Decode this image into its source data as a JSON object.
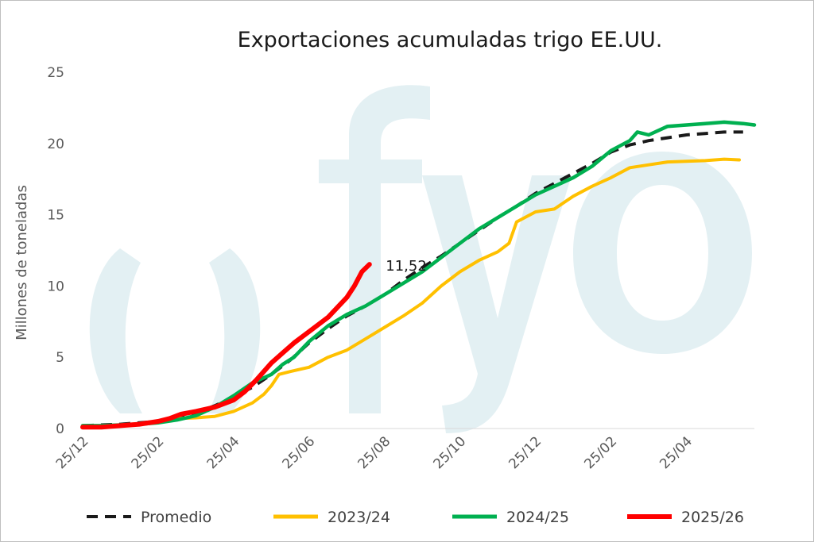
{
  "chart_data": {
    "type": "line",
    "title": "Exportaciones acumuladas trigo EE.UU.",
    "ylabel": "Millones de toneladas",
    "xlabel": "",
    "ylim": [
      0,
      25
    ],
    "yticks": [
      "0",
      "5",
      "10",
      "15",
      "20",
      "25"
    ],
    "xlim": [
      0,
      17.8
    ],
    "xticks": [
      {
        "pos": 0,
        "label": "25/12"
      },
      {
        "pos": 2,
        "label": "25/02"
      },
      {
        "pos": 4,
        "label": "25/04"
      },
      {
        "pos": 6,
        "label": "25/06"
      },
      {
        "pos": 8,
        "label": "25/08"
      },
      {
        "pos": 10,
        "label": "25/10"
      },
      {
        "pos": 12,
        "label": "25/12"
      },
      {
        "pos": 14,
        "label": "25/02"
      },
      {
        "pos": 16,
        "label": "25/04"
      }
    ],
    "watermark": "fyo",
    "annotation": {
      "text": "11,52",
      "x": 7.4,
      "y": 11.52
    },
    "grid": false,
    "legend_position": "bottom",
    "series": [
      {
        "name": "Promedio",
        "color": "#1a1a1a",
        "dashed": true,
        "points": [
          [
            0,
            0.2
          ],
          [
            0.5,
            0.25
          ],
          [
            1,
            0.3
          ],
          [
            1.5,
            0.4
          ],
          [
            2,
            0.5
          ],
          [
            2.5,
            0.7
          ],
          [
            3,
            1.1
          ],
          [
            3.5,
            1.6
          ],
          [
            4,
            2.2
          ],
          [
            4.5,
            2.9
          ],
          [
            5,
            3.8
          ],
          [
            5.5,
            4.8
          ],
          [
            6,
            6.0
          ],
          [
            6.5,
            7.0
          ],
          [
            7,
            7.9
          ],
          [
            7.5,
            8.6
          ],
          [
            8,
            9.4
          ],
          [
            8.5,
            10.4
          ],
          [
            9,
            11.3
          ],
          [
            9.5,
            12.1
          ],
          [
            10,
            13.0
          ],
          [
            10.5,
            13.9
          ],
          [
            11,
            14.8
          ],
          [
            11.5,
            15.6
          ],
          [
            12,
            16.5
          ],
          [
            12.5,
            17.2
          ],
          [
            13,
            17.9
          ],
          [
            13.5,
            18.6
          ],
          [
            14,
            19.4
          ],
          [
            14.5,
            19.9
          ],
          [
            15,
            20.2
          ],
          [
            15.5,
            20.4
          ],
          [
            16,
            20.6
          ],
          [
            16.5,
            20.7
          ],
          [
            17,
            20.8
          ],
          [
            17.5,
            20.8
          ]
        ]
      },
      {
        "name": "2023/24",
        "color": "#ffc000",
        "dashed": false,
        "points": [
          [
            0,
            0.1
          ],
          [
            0.5,
            0.15
          ],
          [
            1,
            0.25
          ],
          [
            1.5,
            0.35
          ],
          [
            2,
            0.5
          ],
          [
            2.5,
            0.7
          ],
          [
            3,
            0.75
          ],
          [
            3.5,
            0.85
          ],
          [
            4,
            1.2
          ],
          [
            4.5,
            1.8
          ],
          [
            4.8,
            2.4
          ],
          [
            5,
            3.0
          ],
          [
            5.2,
            3.8
          ],
          [
            5.5,
            4.0
          ],
          [
            6,
            4.3
          ],
          [
            6.5,
            5.0
          ],
          [
            7,
            5.5
          ],
          [
            7.5,
            6.3
          ],
          [
            8,
            7.1
          ],
          [
            8.5,
            7.9
          ],
          [
            9,
            8.8
          ],
          [
            9.5,
            10.0
          ],
          [
            10,
            11.0
          ],
          [
            10.5,
            11.8
          ],
          [
            11,
            12.4
          ],
          [
            11.3,
            13.0
          ],
          [
            11.5,
            14.5
          ],
          [
            12,
            15.2
          ],
          [
            12.5,
            15.4
          ],
          [
            13,
            16.3
          ],
          [
            13.5,
            17.0
          ],
          [
            14,
            17.6
          ],
          [
            14.5,
            18.3
          ],
          [
            15,
            18.5
          ],
          [
            15.5,
            18.7
          ],
          [
            16,
            18.75
          ],
          [
            16.5,
            18.8
          ],
          [
            17,
            18.9
          ],
          [
            17.4,
            18.85
          ]
        ]
      },
      {
        "name": "2024/25",
        "color": "#00b050",
        "dashed": false,
        "points": [
          [
            0,
            0.2
          ],
          [
            0.5,
            0.2
          ],
          [
            1,
            0.25
          ],
          [
            1.5,
            0.3
          ],
          [
            2,
            0.4
          ],
          [
            2.5,
            0.6
          ],
          [
            3,
            0.9
          ],
          [
            3.5,
            1.5
          ],
          [
            4,
            2.3
          ],
          [
            4.5,
            3.2
          ],
          [
            5,
            3.8
          ],
          [
            5.3,
            4.5
          ],
          [
            5.6,
            5.0
          ],
          [
            6,
            6.1
          ],
          [
            6.5,
            7.2
          ],
          [
            7,
            8.0
          ],
          [
            7.5,
            8.6
          ],
          [
            8,
            9.4
          ],
          [
            8.5,
            10.2
          ],
          [
            9,
            11.0
          ],
          [
            9.5,
            12.0
          ],
          [
            10,
            13.0
          ],
          [
            10.5,
            14.0
          ],
          [
            11,
            14.8
          ],
          [
            11.5,
            15.6
          ],
          [
            12,
            16.4
          ],
          [
            12.5,
            17.0
          ],
          [
            13,
            17.6
          ],
          [
            13.5,
            18.4
          ],
          [
            14,
            19.5
          ],
          [
            14.5,
            20.2
          ],
          [
            14.7,
            20.8
          ],
          [
            15,
            20.6
          ],
          [
            15.5,
            21.2
          ],
          [
            16,
            21.3
          ],
          [
            16.5,
            21.4
          ],
          [
            17,
            21.5
          ],
          [
            17.5,
            21.4
          ],
          [
            17.8,
            21.3
          ]
        ]
      },
      {
        "name": "2025/26",
        "color": "#ff0000",
        "dashed": false,
        "points": [
          [
            0,
            0.1
          ],
          [
            0.5,
            0.1
          ],
          [
            1,
            0.2
          ],
          [
            1.5,
            0.3
          ],
          [
            2,
            0.5
          ],
          [
            2.3,
            0.7
          ],
          [
            2.6,
            1.0
          ],
          [
            3,
            1.2
          ],
          [
            3.5,
            1.5
          ],
          [
            4,
            2.0
          ],
          [
            4.3,
            2.6
          ],
          [
            4.6,
            3.4
          ],
          [
            5,
            4.6
          ],
          [
            5.3,
            5.3
          ],
          [
            5.6,
            6.0
          ],
          [
            6,
            6.8
          ],
          [
            6.5,
            7.8
          ],
          [
            7,
            9.2
          ],
          [
            7.2,
            10.0
          ],
          [
            7.4,
            11.0
          ],
          [
            7.6,
            11.52
          ]
        ]
      }
    ]
  }
}
